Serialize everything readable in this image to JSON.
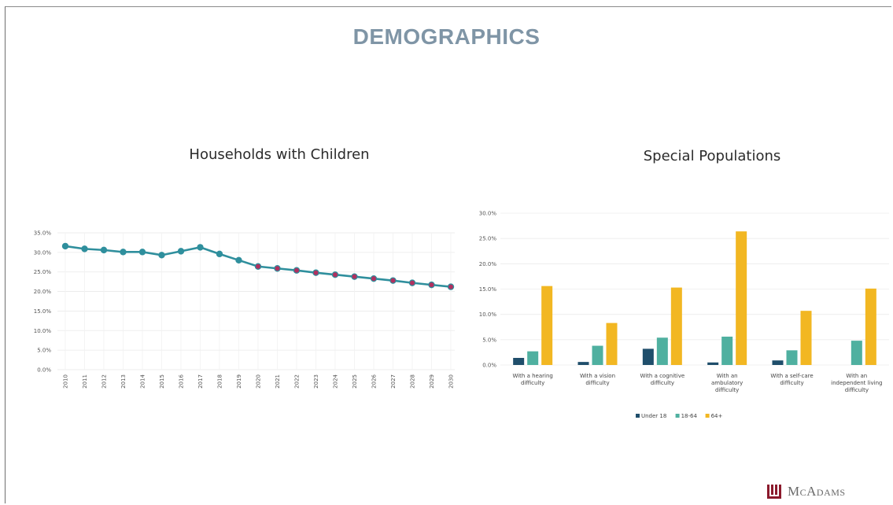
{
  "page": {
    "title": "DEMOGRAPHICS"
  },
  "logo": {
    "text": "McAdams"
  },
  "chart_data": [
    {
      "type": "line",
      "title": "Households with Children",
      "xlabel": "",
      "ylabel": "",
      "x": [
        "2010",
        "2011",
        "2012",
        "2013",
        "2014",
        "2015",
        "2016",
        "2017",
        "2018",
        "2019",
        "2020",
        "2021",
        "2022",
        "2023",
        "2024",
        "2025",
        "2026",
        "2027",
        "2028",
        "2029",
        "2030"
      ],
      "y_ticks": [
        "35.0%",
        "30.0%",
        "25.0%",
        "20.0%",
        "15.0%",
        "10.0%",
        "5.0%",
        "0.0%"
      ],
      "ylim": [
        0,
        35
      ],
      "series": [
        {
          "values": [
            31.6,
            30.9,
            30.6,
            30.1,
            30.1,
            29.3,
            30.3,
            31.3,
            29.6,
            28.0,
            26.4,
            25.9,
            25.4,
            24.8,
            24.3,
            23.8,
            23.3,
            22.8,
            22.2,
            21.7,
            21.2
          ],
          "color": "#2f8f9d",
          "projected_from_index": 10,
          "projected_marker_color": "#b0305f"
        }
      ],
      "grid": true
    },
    {
      "type": "bar",
      "title": "Special Populations",
      "xlabel": "",
      "ylabel": "",
      "categories": [
        "With a hearing difficulty",
        "With a vision difficulty",
        "With a cognitive difficulty",
        "With an ambulatory difficulty",
        "With a self-care difficulty",
        "With an independent living difficulty"
      ],
      "category_lines": [
        [
          "With a hearing",
          "difficulty"
        ],
        [
          "With a vision",
          "difficulty"
        ],
        [
          "With a cognitive",
          "difficulty"
        ],
        [
          "With an",
          "ambulatory",
          "difficulty"
        ],
        [
          "With a self-care",
          "difficulty"
        ],
        [
          "With an",
          "independent living",
          "difficulty"
        ]
      ],
      "y_ticks": [
        "30.0%",
        "25.0%",
        "20.0%",
        "15.0%",
        "10.0%",
        "5.0%",
        "0.0%"
      ],
      "ylim": [
        0,
        30
      ],
      "series": [
        {
          "name": "Under 18",
          "color": "#1f4e6b",
          "values": [
            1.4,
            0.6,
            3.2,
            0.5,
            0.9,
            0
          ]
        },
        {
          "name": "18-64",
          "color": "#4fb0a0",
          "values": [
            2.7,
            3.8,
            5.4,
            5.6,
            2.9,
            4.8
          ]
        },
        {
          "name": "64+",
          "color": "#f2b722",
          "values": [
            15.6,
            8.3,
            15.3,
            26.4,
            10.7,
            15.1
          ]
        }
      ],
      "legend": "bottom",
      "grid": true
    }
  ]
}
